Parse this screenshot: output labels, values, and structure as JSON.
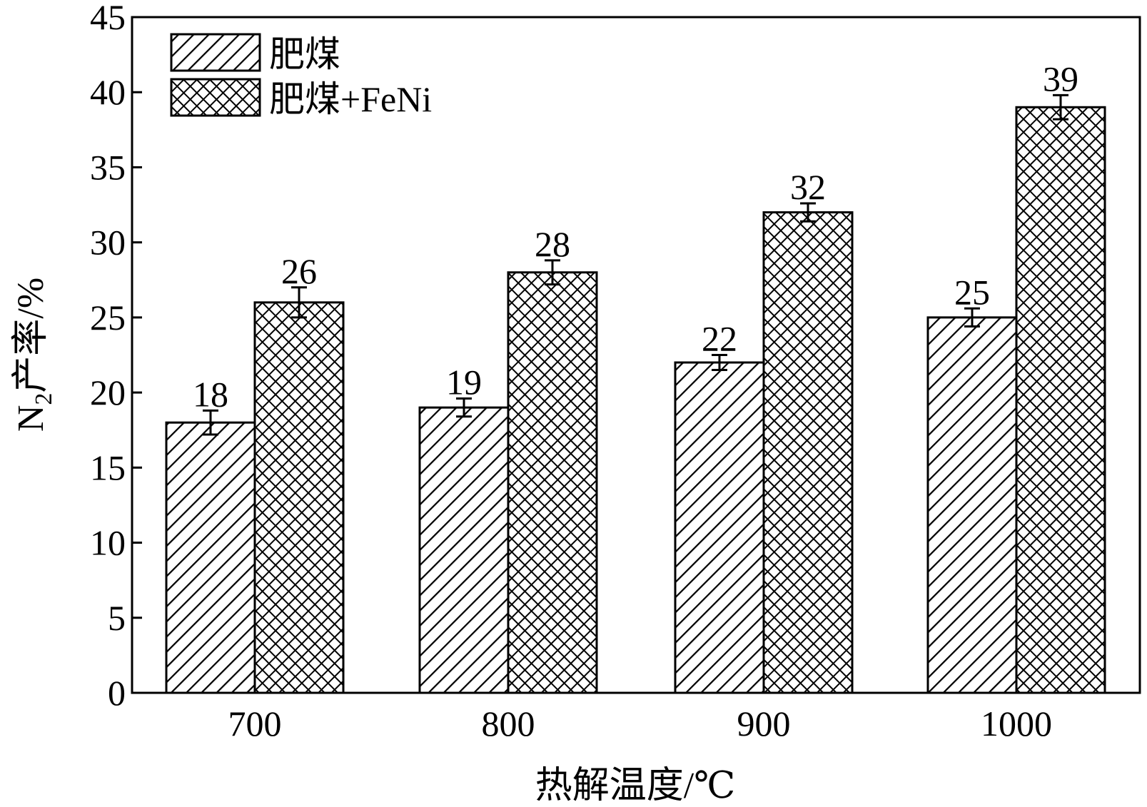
{
  "chart_data": {
    "type": "bar",
    "categories": [
      "700",
      "800",
      "900",
      "1000"
    ],
    "series": [
      {
        "name": "肥煤",
        "values": [
          18,
          19,
          22,
          25
        ],
        "errors": [
          0.8,
          0.6,
          0.5,
          0.6
        ],
        "pattern": "diagonal-hatch"
      },
      {
        "name": "肥煤+FeNi",
        "values": [
          26,
          28,
          32,
          39
        ],
        "errors": [
          1.0,
          0.8,
          0.6,
          0.8
        ],
        "pattern": "cross-hatch"
      }
    ],
    "data_labels": [
      [
        "18",
        "19",
        "22",
        "25"
      ],
      [
        "26",
        "28",
        "32",
        "39"
      ]
    ],
    "xlabel": "热解温度/℃",
    "ylabel": {
      "main": "N",
      "subscript": "2",
      "rest": "产率/%"
    },
    "ylim": [
      0,
      45
    ],
    "yticks": [
      "0",
      "5",
      "10",
      "15",
      "20",
      "25",
      "30",
      "35",
      "40",
      "45"
    ],
    "legend_position": "top-left",
    "grid": false,
    "colors": {
      "bar_fill": "#ffffff",
      "ink": "#000000"
    }
  }
}
